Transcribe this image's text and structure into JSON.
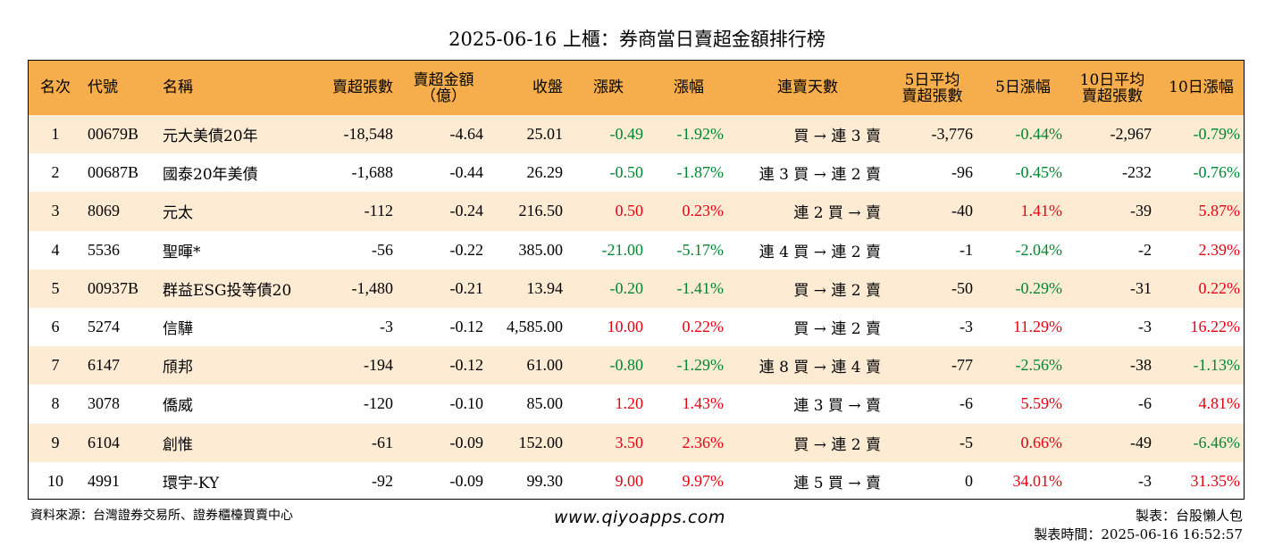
{
  "title": "2025-06-16 上櫃：券商當日賣超金額排行榜",
  "colors": {
    "header_bg": "#f6ad4b",
    "row_odd_bg": "#fdebd3",
    "row_even_bg": "#ffffff",
    "up": "#e60012",
    "down": "#00862f"
  },
  "table": {
    "headers": [
      [
        "名次"
      ],
      [
        "代號"
      ],
      [
        "名稱"
      ],
      [
        "賣超張數"
      ],
      [
        "賣超金額",
        "（億）"
      ],
      [
        "收盤"
      ],
      [
        "漲跌"
      ],
      [
        "漲幅"
      ],
      [
        "連賣天數"
      ],
      [
        "5日平均",
        "賣超張數"
      ],
      [
        "5日漲幅"
      ],
      [
        "10日平均",
        "賣超張數"
      ],
      [
        "10日漲幅"
      ]
    ],
    "rows": [
      {
        "rank": "1",
        "code": "00679B",
        "name": "元大美債20年",
        "sell_lots": "-18,548",
        "sell_amount": "-4.64",
        "close": "25.01",
        "change": "-0.49",
        "change_dir": "down",
        "pct": "-1.92%",
        "pct_dir": "down",
        "streak": "買 → 連 3 賣",
        "avg5": "-3,776",
        "pct5": "-0.44%",
        "pct5_dir": "down",
        "avg10": "-2,967",
        "pct10": "-0.79%",
        "pct10_dir": "down"
      },
      {
        "rank": "2",
        "code": "00687B",
        "name": "國泰20年美債",
        "sell_lots": "-1,688",
        "sell_amount": "-0.44",
        "close": "26.29",
        "change": "-0.50",
        "change_dir": "down",
        "pct": "-1.87%",
        "pct_dir": "down",
        "streak": "連 3 買 → 連 2 賣",
        "avg5": "-96",
        "pct5": "-0.45%",
        "pct5_dir": "down",
        "avg10": "-232",
        "pct10": "-0.76%",
        "pct10_dir": "down"
      },
      {
        "rank": "3",
        "code": "8069",
        "name": "元太",
        "sell_lots": "-112",
        "sell_amount": "-0.24",
        "close": "216.50",
        "change": "0.50",
        "change_dir": "up",
        "pct": "0.23%",
        "pct_dir": "up",
        "streak": "連 2 買 → 賣",
        "avg5": "-40",
        "pct5": "1.41%",
        "pct5_dir": "up",
        "avg10": "-39",
        "pct10": "5.87%",
        "pct10_dir": "up"
      },
      {
        "rank": "4",
        "code": "5536",
        "name": "聖暉*",
        "sell_lots": "-56",
        "sell_amount": "-0.22",
        "close": "385.00",
        "change": "-21.00",
        "change_dir": "down",
        "pct": "-5.17%",
        "pct_dir": "down",
        "streak": "連 4 買 → 連 2 賣",
        "avg5": "-1",
        "pct5": "-2.04%",
        "pct5_dir": "down",
        "avg10": "-2",
        "pct10": "2.39%",
        "pct10_dir": "up"
      },
      {
        "rank": "5",
        "code": "00937B",
        "name": "群益ESG投等債20",
        "sell_lots": "-1,480",
        "sell_amount": "-0.21",
        "close": "13.94",
        "change": "-0.20",
        "change_dir": "down",
        "pct": "-1.41%",
        "pct_dir": "down",
        "streak": "買 → 連 2 賣",
        "avg5": "-50",
        "pct5": "-0.29%",
        "pct5_dir": "down",
        "avg10": "-31",
        "pct10": "0.22%",
        "pct10_dir": "up"
      },
      {
        "rank": "6",
        "code": "5274",
        "name": "信驊",
        "sell_lots": "-3",
        "sell_amount": "-0.12",
        "close": "4,585.00",
        "change": "10.00",
        "change_dir": "up",
        "pct": "0.22%",
        "pct_dir": "up",
        "streak": "買 → 連 2 賣",
        "avg5": "-3",
        "pct5": "11.29%",
        "pct5_dir": "up",
        "avg10": "-3",
        "pct10": "16.22%",
        "pct10_dir": "up"
      },
      {
        "rank": "7",
        "code": "6147",
        "name": "頎邦",
        "sell_lots": "-194",
        "sell_amount": "-0.12",
        "close": "61.00",
        "change": "-0.80",
        "change_dir": "down",
        "pct": "-1.29%",
        "pct_dir": "down",
        "streak": "連 8 買 → 連 4 賣",
        "avg5": "-77",
        "pct5": "-2.56%",
        "pct5_dir": "down",
        "avg10": "-38",
        "pct10": "-1.13%",
        "pct10_dir": "down"
      },
      {
        "rank": "8",
        "code": "3078",
        "name": "僑威",
        "sell_lots": "-120",
        "sell_amount": "-0.10",
        "close": "85.00",
        "change": "1.20",
        "change_dir": "up",
        "pct": "1.43%",
        "pct_dir": "up",
        "streak": "連 3 買 → 賣",
        "avg5": "-6",
        "pct5": "5.59%",
        "pct5_dir": "up",
        "avg10": "-6",
        "pct10": "4.81%",
        "pct10_dir": "up"
      },
      {
        "rank": "9",
        "code": "6104",
        "name": "創惟",
        "sell_lots": "-61",
        "sell_amount": "-0.09",
        "close": "152.00",
        "change": "3.50",
        "change_dir": "up",
        "pct": "2.36%",
        "pct_dir": "up",
        "streak": "買 → 連 2 賣",
        "avg5": "-5",
        "pct5": "0.66%",
        "pct5_dir": "up",
        "avg10": "-49",
        "pct10": "-6.46%",
        "pct10_dir": "down"
      },
      {
        "rank": "10",
        "code": "4991",
        "name": "環宇-KY",
        "sell_lots": "-92",
        "sell_amount": "-0.09",
        "close": "99.30",
        "change": "9.00",
        "change_dir": "up",
        "pct": "9.97%",
        "pct_dir": "up",
        "streak": "連 5 買 → 賣",
        "avg5": "0",
        "pct5": "34.01%",
        "pct5_dir": "up",
        "avg10": "-3",
        "pct10": "31.35%",
        "pct10_dir": "up"
      }
    ]
  },
  "footer": {
    "source": "資料來源：台灣證券交易所、證券櫃檯買賣中心",
    "website": "www.qiyoapps.com",
    "maker": "製表：台股懶人包",
    "made_time": "製表時間：2025-06-16 16:52:57"
  }
}
